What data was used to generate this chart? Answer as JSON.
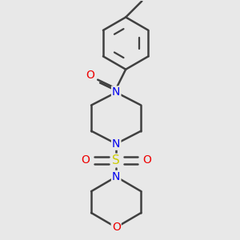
{
  "bg_color": "#e8e8e8",
  "bond_color": "#404040",
  "N_color": "#0000ee",
  "O_color": "#ee0000",
  "S_color": "#cccc00",
  "lw": 1.8,
  "figsize": [
    3.0,
    3.0
  ],
  "dpi": 100,
  "xlim": [
    -1.4,
    1.6
  ],
  "ylim": [
    -3.2,
    3.0
  ]
}
